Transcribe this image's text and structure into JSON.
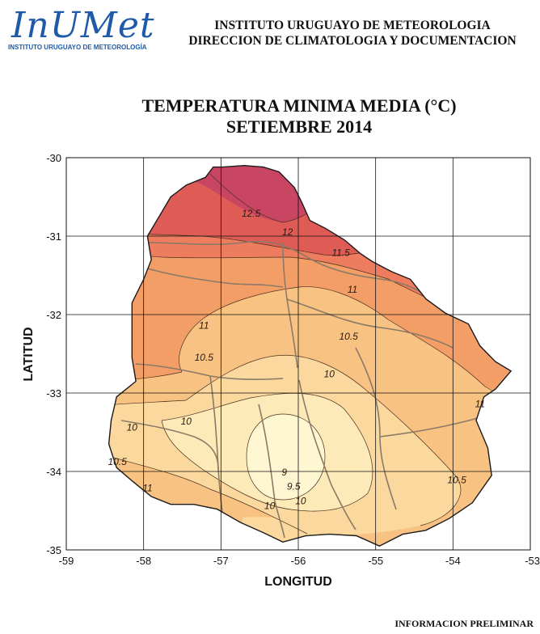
{
  "header": {
    "logo_text": "InUMet",
    "logo_subtitle": "INSTITUTO URUGUAYO DE METEOROLOGÍA",
    "org_line1": "INSTITUTO URUGUAYO DE METEOROLOGIA",
    "org_line2": "DIRECCION DE CLIMATOLOGIA Y DOCUMENTACION"
  },
  "map": {
    "title_line1": "TEMPERATURA MINIMA MEDIA (°C)",
    "title_line2": "SETIEMBRE 2014",
    "xlabel": "LONGITUD",
    "ylabel": "LATITUD",
    "xlim": [
      -59,
      -53
    ],
    "ylim": [
      -35,
      -30
    ],
    "x_ticks": [
      "-59",
      "-58",
      "-57",
      "-56",
      "-55",
      "-54",
      "-53"
    ],
    "y_ticks": [
      "-30",
      "-31",
      "-32",
      "-33",
      "-34",
      "-35"
    ],
    "grid": true,
    "colors": {
      "t_9": "#fff7d2",
      "t_9_5": "#fdeab8",
      "t_10": "#fbd99e",
      "t_10_5": "#f8c283",
      "t_11": "#f49e67",
      "t_11_5": "#ed7d5e",
      "t_12": "#df5c56",
      "t_12_5": "#c84661",
      "boundary": "#1a1a1a",
      "departments": "#8a7a66"
    },
    "contour_labels": [
      {
        "text": "12.5",
        "lon": -56.61,
        "lat": -30.75
      },
      {
        "text": "12",
        "lon": -56.14,
        "lat": -30.99
      },
      {
        "text": "11.5",
        "lon": -55.45,
        "lat": -31.25
      },
      {
        "text": "11",
        "lon": -55.3,
        "lat": -31.72
      },
      {
        "text": "11",
        "lon": -57.22,
        "lat": -32.18
      },
      {
        "text": "10.5",
        "lon": -55.35,
        "lat": -32.32
      },
      {
        "text": "10.5",
        "lon": -57.22,
        "lat": -32.59
      },
      {
        "text": "10",
        "lon": -55.6,
        "lat": -32.8
      },
      {
        "text": "10",
        "lon": -58.15,
        "lat": -33.48
      },
      {
        "text": "10",
        "lon": -57.45,
        "lat": -33.4
      },
      {
        "text": "9",
        "lon": -56.18,
        "lat": -34.05
      },
      {
        "text": "9.5",
        "lon": -56.06,
        "lat": -34.23
      },
      {
        "text": "10",
        "lon": -56.37,
        "lat": -34.48
      },
      {
        "text": "10",
        "lon": -55.97,
        "lat": -34.42
      },
      {
        "text": "10.5",
        "lon": -58.34,
        "lat": -33.92
      },
      {
        "text": "11",
        "lon": -57.95,
        "lat": -34.25
      },
      {
        "text": "10.5",
        "lon": -53.95,
        "lat": -34.15
      },
      {
        "text": "11",
        "lon": -53.65,
        "lat": -33.18
      }
    ]
  },
  "footer": {
    "note": "INFORMACION PRELIMINAR"
  }
}
